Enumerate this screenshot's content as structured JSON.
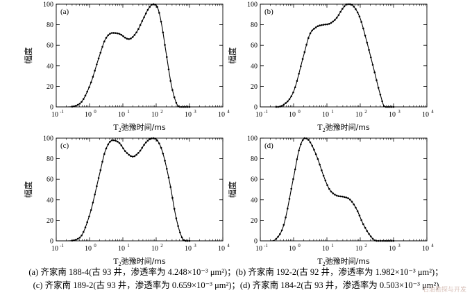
{
  "x_tick_labels": [
    "10",
    "10",
    "10",
    "10",
    "10",
    "10"
  ],
  "x_tick_exponents": [
    "-1",
    "0",
    "1",
    "2",
    "3",
    "4"
  ],
  "y_tick_labels": [
    "0",
    "20",
    "40",
    "60",
    "80",
    "100"
  ],
  "chart_data": [
    {
      "type": "line",
      "panel_label": "(a)",
      "xlabel_prefix": "T",
      "xlabel_sub": "2",
      "xlabel_suffix": "弛豫时间/ms",
      "ylabel": "幅度",
      "x_scale": "log",
      "xlim": [
        0.1,
        10000
      ],
      "ylim": [
        0,
        100
      ],
      "marker_style": "dots",
      "x": [
        0.1,
        0.2,
        0.5,
        1,
        2,
        3,
        5,
        8,
        15,
        25,
        40,
        60,
        80,
        100,
        120,
        150,
        200,
        300,
        500,
        1000,
        10000
      ],
      "y": [
        0,
        0,
        3,
        20,
        50,
        66,
        72,
        71,
        66,
        72,
        85,
        96,
        100,
        99,
        93,
        78,
        52,
        18,
        0,
        0,
        0
      ]
    },
    {
      "type": "line",
      "panel_label": "(b)",
      "xlabel_prefix": "T",
      "xlabel_sub": "2",
      "xlabel_suffix": "弛豫时间/ms",
      "ylabel": "幅度",
      "x_scale": "log",
      "xlim": [
        0.1,
        10000
      ],
      "ylim": [
        0,
        100
      ],
      "marker_style": "dots",
      "x": [
        0.1,
        0.3,
        0.5,
        1,
        2,
        3,
        5,
        8,
        12,
        20,
        30,
        40,
        50,
        70,
        100,
        150,
        250,
        400,
        550,
        1000,
        10000
      ],
      "y": [
        0,
        0,
        2,
        15,
        50,
        70,
        78,
        80,
        81,
        87,
        96,
        100,
        100,
        96,
        86,
        66,
        38,
        12,
        0,
        0,
        0
      ]
    },
    {
      "type": "line",
      "panel_label": "(c)",
      "xlabel_prefix": "T",
      "xlabel_sub": "2",
      "xlabel_suffix": "弛豫时间/ms",
      "ylabel": "幅度",
      "x_scale": "log",
      "xlim": [
        0.1,
        10000
      ],
      "ylim": [
        0,
        100
      ],
      "marker_style": "dots",
      "x": [
        0.1,
        0.2,
        0.5,
        1,
        2,
        3,
        5,
        8,
        12,
        20,
        30,
        50,
        80,
        100,
        150,
        250,
        400,
        600,
        800,
        1000,
        10000
      ],
      "y": [
        0,
        0,
        3,
        25,
        65,
        88,
        98,
        95,
        87,
        82,
        86,
        96,
        100,
        99,
        88,
        58,
        22,
        3,
        0,
        0,
        0
      ]
    },
    {
      "type": "line",
      "panel_label": "(d)",
      "xlabel_prefix": "T",
      "xlabel_sub": "2",
      "xlabel_suffix": "弛豫时间/ms",
      "ylabel": "幅度",
      "x_scale": "log",
      "xlim": [
        0.1,
        10000
      ],
      "ylim": [
        0,
        100
      ],
      "marker_style": "dots",
      "x": [
        0.1,
        0.2,
        0.3,
        0.5,
        1,
        1.5,
        2.2,
        3,
        5,
        8,
        12,
        20,
        30,
        50,
        80,
        120,
        200,
        300,
        1000,
        10000
      ],
      "y": [
        0,
        0,
        2,
        15,
        62,
        90,
        100,
        97,
        82,
        63,
        50,
        44,
        43,
        40,
        30,
        17,
        5,
        0,
        0,
        0
      ]
    }
  ],
  "captions": {
    "line1": "(a)  齐家南 188-4(古 93 井，渗透率为 4.248×10⁻³ μm²)；(b)  齐家南 192-2(古 92 井，渗透率为 1.982×10⁻³ μm²)；",
    "line2": "(c)  齐家南 189-2(古 93 井，渗透率为 0.659×10⁻³ μm²)；(d)  齐家南 184-2(古 93 井，渗透率为 0.503×10⁻³ μm²)"
  },
  "watermark": "石油勘探与开发"
}
